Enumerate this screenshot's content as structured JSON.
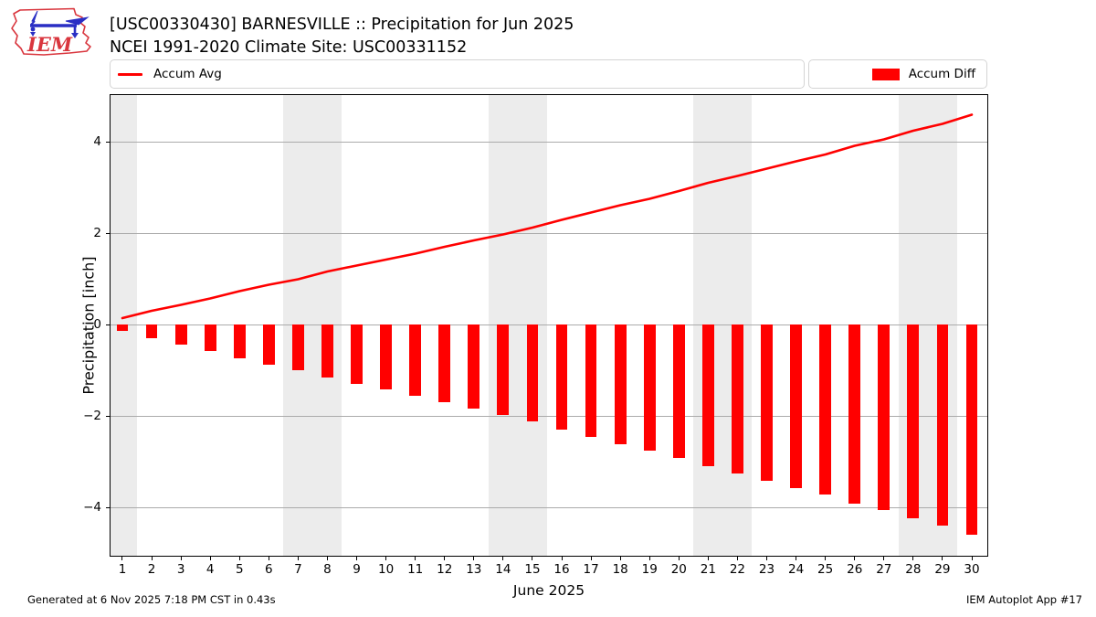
{
  "header": {
    "title": "[USC00330430] BARNESVILLE :: Precipitation for Jun 2025",
    "subtitle": "NCEI 1991-2020 Climate Site: USC00331152"
  },
  "logo": {
    "text": "IEM",
    "outline_color": "#d9363e",
    "vane_color": "#2a2ec4"
  },
  "legend": {
    "avg_label": "Accum Avg",
    "diff_label": "Accum Diff",
    "color": "#ff0000"
  },
  "footer": {
    "generated": "Generated at 6 Nov 2025 7:18 PM CST in 0.43s",
    "app": "IEM Autoplot App #17"
  },
  "chart_data": {
    "type": "combo",
    "title": "[USC00330430] BARNESVILLE :: Precipitation for Jun 2025",
    "xlabel": "June 2025",
    "ylabel": "Precipitation [inch]",
    "x": [
      1,
      2,
      3,
      4,
      5,
      6,
      7,
      8,
      9,
      10,
      11,
      12,
      13,
      14,
      15,
      16,
      17,
      18,
      19,
      20,
      21,
      22,
      23,
      24,
      25,
      26,
      27,
      28,
      29,
      30
    ],
    "series": [
      {
        "name": "Accum Avg",
        "type": "line",
        "color": "#ff0000",
        "values": [
          0.14,
          0.3,
          0.43,
          0.57,
          0.73,
          0.87,
          0.99,
          1.16,
          1.29,
          1.42,
          1.55,
          1.7,
          1.84,
          1.97,
          2.12,
          2.29,
          2.45,
          2.61,
          2.75,
          2.92,
          3.1,
          3.25,
          3.41,
          3.57,
          3.72,
          3.91,
          4.05,
          4.24,
          4.39,
          4.59
        ]
      },
      {
        "name": "Accum Diff",
        "type": "bar",
        "color": "#ff0000",
        "values": [
          -0.14,
          -0.3,
          -0.43,
          -0.57,
          -0.73,
          -0.87,
          -0.99,
          -1.16,
          -1.29,
          -1.42,
          -1.55,
          -1.7,
          -1.84,
          -1.97,
          -2.12,
          -2.29,
          -2.45,
          -2.61,
          -2.75,
          -2.92,
          -3.1,
          -3.25,
          -3.41,
          -3.57,
          -3.72,
          -3.91,
          -4.05,
          -4.24,
          -4.39,
          -4.59
        ]
      }
    ],
    "xlim": [
      0.595,
      30.53
    ],
    "ylim": [
      -5.06,
      5.02
    ],
    "yticks": [
      -4,
      -2,
      0,
      2,
      4
    ],
    "xticks": [
      1,
      2,
      3,
      4,
      5,
      6,
      7,
      8,
      9,
      10,
      11,
      12,
      13,
      14,
      15,
      16,
      17,
      18,
      19,
      20,
      21,
      22,
      23,
      24,
      25,
      26,
      27,
      28,
      29,
      30
    ],
    "grid": true,
    "legend_position": "top",
    "weekend_bands": [
      [
        0.5,
        1.5
      ],
      [
        6.5,
        8.5
      ],
      [
        13.5,
        15.5
      ],
      [
        20.5,
        22.5
      ],
      [
        27.5,
        29.5
      ]
    ],
    "band_color": "#ececec",
    "grid_color": "#ababab",
    "bar_width_days": 0.4
  }
}
